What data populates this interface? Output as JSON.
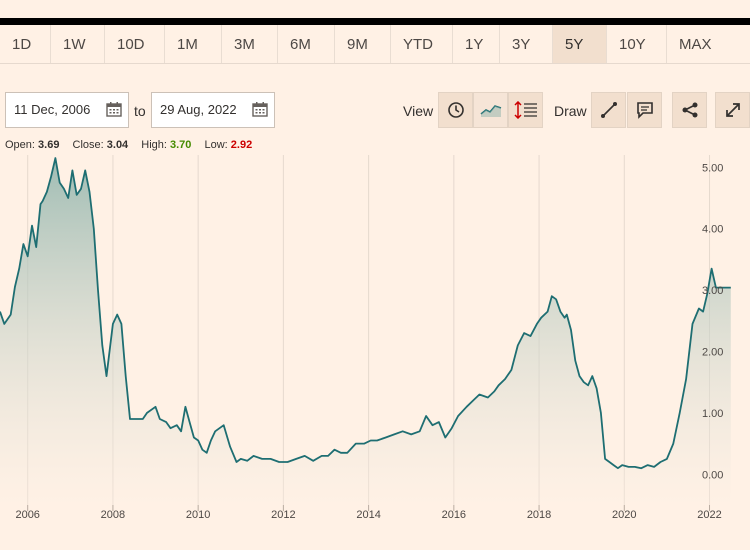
{
  "ranges": [
    "1D",
    "1W",
    "10D",
    "1M",
    "3M",
    "6M",
    "9M",
    "YTD",
    "1Y",
    "3Y",
    "5Y",
    "10Y",
    "MAX"
  ],
  "active_range": "5Y",
  "from_date": "11 Dec, 2006",
  "to_label": "to",
  "to_date": "29 Aug, 2022",
  "view_label": "View",
  "draw_label": "Draw",
  "ohlc": {
    "open_label": "Open:",
    "open": "3.69",
    "close_label": "Close:",
    "close": "3.04",
    "high_label": "High:",
    "high": "3.70",
    "low_label": "Low:",
    "low": "2.92"
  },
  "colors": {
    "line": "#1e6e72",
    "fill_top": "#8fb3ab",
    "grid": "#e6d9ce",
    "accent_high": "#458b00",
    "accent_low": "#cc0000"
  },
  "chart_data": {
    "type": "area",
    "xlabel": "",
    "ylabel": "",
    "x_ticks": [
      "2006",
      "2008",
      "2010",
      "2012",
      "2014",
      "2016",
      "2018",
      "2020",
      "2022"
    ],
    "y_ticks": [
      "0.00",
      "1.00",
      "2.00",
      "3.00",
      "4.00",
      "5.00"
    ],
    "ylim": [
      -0.5,
      5.2
    ],
    "xlim": [
      2005.35,
      2022.95
    ],
    "grid": "vertical",
    "series": [
      {
        "x": [
          2005.35,
          2005.45,
          2005.6,
          2005.7,
          2005.8,
          2005.9,
          2006.0,
          2006.1,
          2006.2,
          2006.3,
          2006.35,
          2006.45,
          2006.55,
          2006.65,
          2006.75,
          2006.85,
          2006.95,
          2007.05,
          2007.15,
          2007.25,
          2007.35,
          2007.45,
          2007.55,
          2007.65,
          2007.75,
          2007.85,
          2008.0,
          2008.1,
          2008.2,
          2008.3,
          2008.4,
          2008.5,
          2008.7,
          2008.8,
          2009.0,
          2009.1,
          2009.25,
          2009.35,
          2009.5,
          2009.6,
          2009.7,
          2009.8,
          2009.9,
          2010.0,
          2010.1,
          2010.2,
          2010.3,
          2010.4,
          2010.5,
          2010.6,
          2010.75,
          2010.9,
          2011.0,
          2011.15,
          2011.3,
          2011.5,
          2011.7,
          2011.9,
          2012.1,
          2012.3,
          2012.5,
          2012.7,
          2012.9,
          2013.05,
          2013.2,
          2013.35,
          2013.5,
          2013.7,
          2013.9,
          2014.05,
          2014.2,
          2014.4,
          2014.6,
          2014.8,
          2015.0,
          2015.2,
          2015.35,
          2015.5,
          2015.65,
          2015.8,
          2015.95,
          2016.1,
          2016.3,
          2016.45,
          2016.6,
          2016.8,
          2016.95,
          2017.05,
          2017.2,
          2017.35,
          2017.5,
          2017.65,
          2017.8,
          2017.95,
          2018.05,
          2018.2,
          2018.3,
          2018.4,
          2018.5,
          2018.6,
          2018.65,
          2018.75,
          2018.85,
          2018.95,
          2019.05,
          2019.15,
          2019.25,
          2019.35,
          2019.45,
          2019.55,
          2019.65,
          2019.75,
          2019.85,
          2019.95,
          2020.1,
          2020.25,
          2020.4,
          2020.55,
          2020.7,
          2020.85,
          2021.0,
          2021.15,
          2021.3,
          2021.45,
          2021.6,
          2021.75,
          2021.85,
          2021.95,
          2022.05,
          2022.15,
          2022.25,
          2022.35,
          2022.5
        ],
        "values": [
          2.65,
          2.45,
          2.6,
          3.05,
          3.35,
          3.75,
          3.55,
          4.05,
          3.7,
          4.4,
          4.45,
          4.6,
          4.85,
          5.15,
          4.75,
          4.65,
          4.5,
          4.95,
          4.55,
          4.65,
          4.95,
          4.6,
          4.0,
          3.0,
          2.1,
          1.6,
          2.45,
          2.6,
          2.45,
          1.6,
          0.9,
          0.9,
          0.9,
          1.0,
          1.1,
          0.9,
          0.85,
          0.75,
          0.8,
          0.7,
          1.1,
          0.85,
          0.6,
          0.55,
          0.4,
          0.35,
          0.55,
          0.7,
          0.75,
          0.8,
          0.45,
          0.2,
          0.25,
          0.22,
          0.3,
          0.25,
          0.25,
          0.2,
          0.2,
          0.25,
          0.3,
          0.22,
          0.3,
          0.3,
          0.4,
          0.35,
          0.35,
          0.5,
          0.5,
          0.55,
          0.55,
          0.6,
          0.65,
          0.7,
          0.65,
          0.7,
          0.95,
          0.8,
          0.85,
          0.6,
          0.75,
          0.95,
          1.1,
          1.2,
          1.3,
          1.25,
          1.35,
          1.45,
          1.55,
          1.7,
          2.1,
          2.3,
          2.25,
          2.45,
          2.55,
          2.65,
          2.9,
          2.85,
          2.65,
          2.55,
          2.6,
          2.35,
          1.85,
          1.6,
          1.5,
          1.45,
          1.6,
          1.4,
          1.0,
          0.25,
          0.2,
          0.15,
          0.1,
          0.15,
          0.12,
          0.12,
          0.1,
          0.15,
          0.12,
          0.2,
          0.25,
          0.5,
          1.0,
          1.55,
          2.45,
          2.7,
          2.65,
          2.95,
          3.35,
          3.04,
          3.04,
          3.04,
          3.04
        ]
      }
    ]
  }
}
